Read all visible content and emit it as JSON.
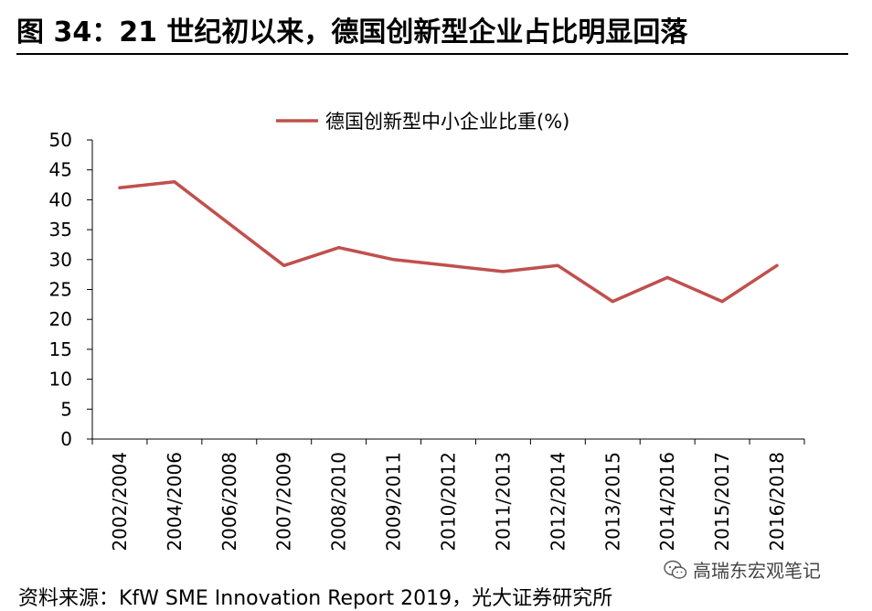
{
  "header": {
    "title": "图 34：21 世纪初以来，德国创新型企业占比明显回落"
  },
  "footer": {
    "source": "资料来源：KfW SME Innovation Report 2019，光大证券研究所"
  },
  "watermark": {
    "text": "高瑞东宏观笔记",
    "icon": "wechat-icon"
  },
  "chart_data": {
    "type": "line",
    "title": "",
    "xlabel": "",
    "ylabel": "",
    "ylim": [
      0,
      50
    ],
    "yticks": [
      0,
      5,
      10,
      15,
      20,
      25,
      30,
      35,
      40,
      45,
      50
    ],
    "categories": [
      "2002/2004",
      "2004/2006",
      "2006/2008",
      "2007/2009",
      "2008/2010",
      "2009/2011",
      "2010/2012",
      "2011/2013",
      "2012/2014",
      "2013/2015",
      "2014/2016",
      "2015/2017",
      "2016/2018"
    ],
    "series": [
      {
        "name": "德国创新型中小企业比重(%)",
        "color": "#C0504D",
        "values": [
          42,
          43,
          36,
          29,
          32,
          30,
          29,
          28,
          29,
          23,
          27,
          23,
          29
        ]
      }
    ],
    "legend_position": "top-center",
    "grid": false
  }
}
